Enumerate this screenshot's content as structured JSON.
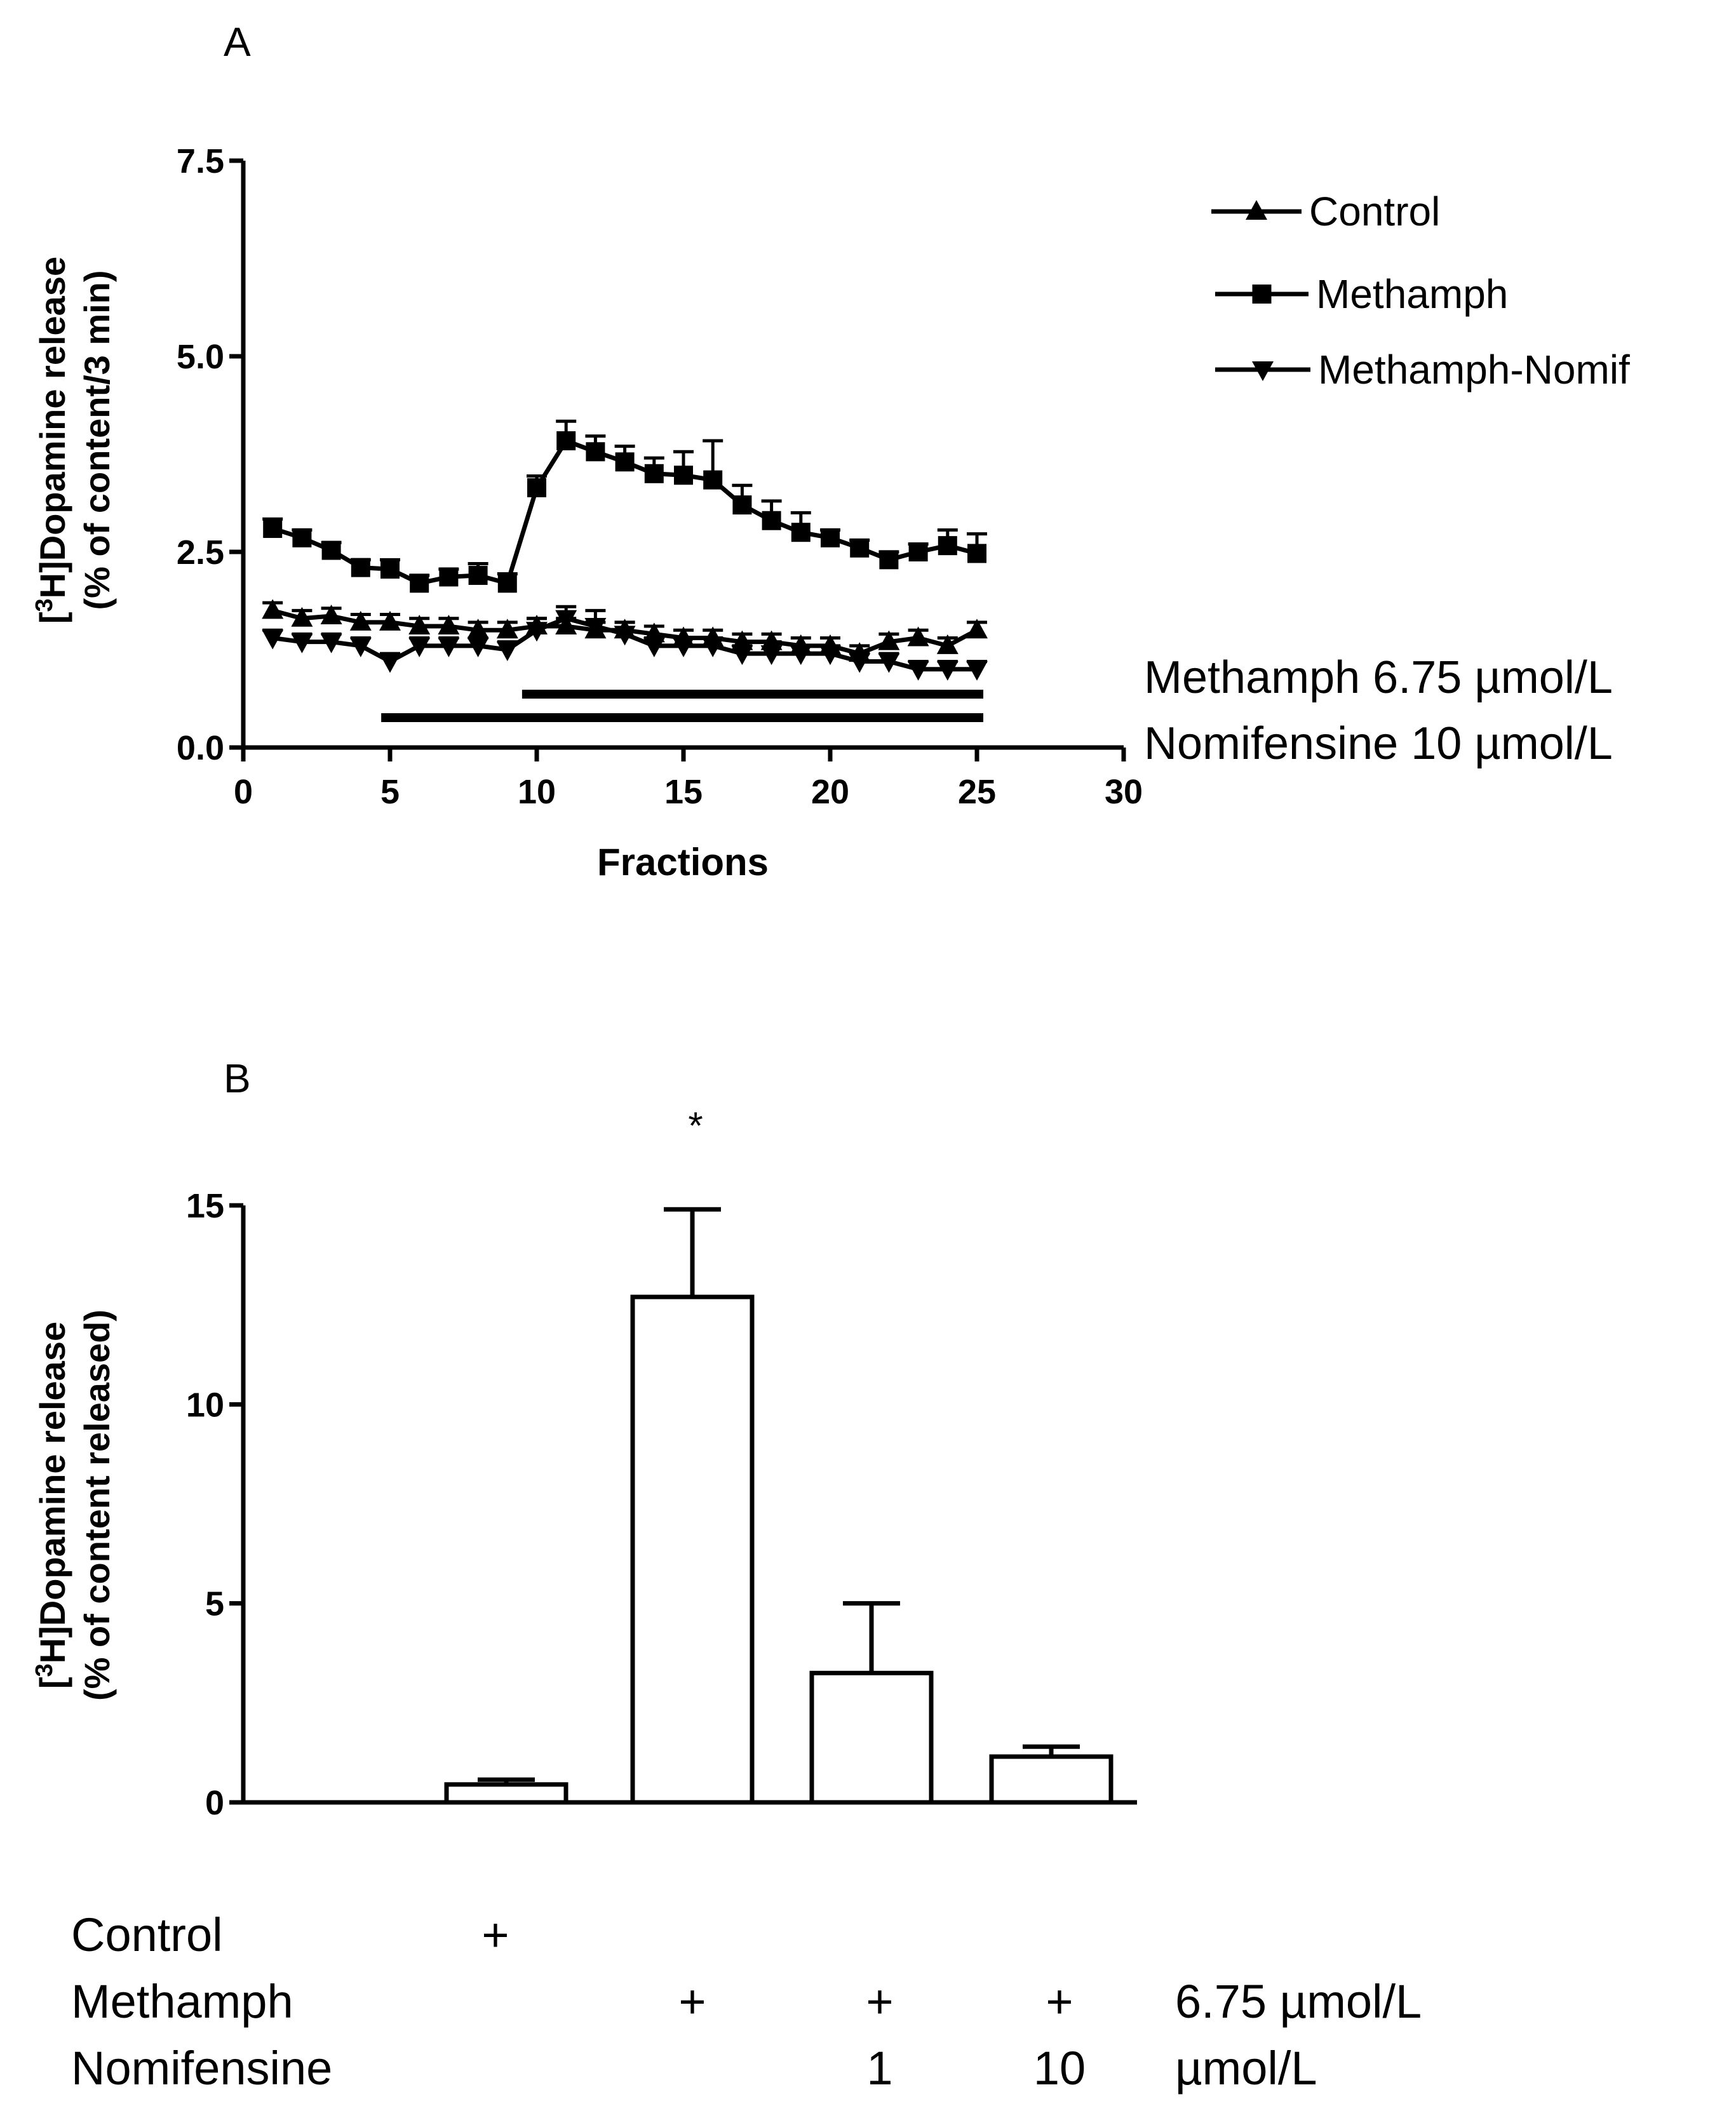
{
  "chart_data": [
    {
      "panel_label": "A",
      "type": "line",
      "xlabel": "Fractions",
      "ylabel": [
        "[3H]Dopamine release",
        "(% of content/3 min)"
      ],
      "xlim": [
        0,
        30
      ],
      "ylim": [
        0,
        7.5
      ],
      "x_ticks": [
        0,
        5,
        10,
        15,
        20,
        25,
        30
      ],
      "y_ticks": [
        0.0,
        2.5,
        5.0,
        7.5
      ],
      "x_tick_labels": [
        "0",
        "5",
        "10",
        "15",
        "20",
        "25",
        "30"
      ],
      "y_tick_labels": [
        "0.0",
        "2.5",
        "5.0",
        "7.5"
      ],
      "x": [
        1,
        2,
        3,
        4,
        5,
        6,
        7,
        8,
        9,
        10,
        11,
        12,
        13,
        14,
        15,
        16,
        17,
        18,
        19,
        20,
        21,
        22,
        23,
        24,
        25
      ],
      "series": [
        {
          "name": "Control",
          "marker": "triangle-up",
          "values": [
            1.75,
            1.65,
            1.68,
            1.6,
            1.6,
            1.55,
            1.55,
            1.5,
            1.5,
            1.55,
            1.55,
            1.5,
            1.5,
            1.45,
            1.4,
            1.4,
            1.35,
            1.35,
            1.3,
            1.3,
            1.2,
            1.35,
            1.4,
            1.3,
            1.5
          ],
          "errors": [
            0.1,
            0.1,
            0.1,
            0.1,
            0.1,
            0.1,
            0.1,
            0.1,
            0.1,
            0.1,
            0.1,
            0.1,
            0.1,
            0.1,
            0.1,
            0.1,
            0.1,
            0.1,
            0.1,
            0.1,
            0.1,
            0.1,
            0.1,
            0.1,
            0.1
          ]
        },
        {
          "name": "Methamph",
          "marker": "square",
          "values": [
            2.8,
            2.68,
            2.52,
            2.3,
            2.28,
            2.1,
            2.18,
            2.2,
            2.1,
            3.32,
            3.92,
            3.78,
            3.65,
            3.5,
            3.48,
            3.42,
            3.1,
            2.9,
            2.75,
            2.68,
            2.55,
            2.4,
            2.5,
            2.58,
            2.48
          ],
          "errors": [
            0.12,
            0.1,
            0.1,
            0.1,
            0.12,
            0.1,
            0.1,
            0.15,
            0.12,
            0.15,
            0.25,
            0.2,
            0.2,
            0.2,
            0.3,
            0.5,
            0.25,
            0.25,
            0.25,
            0.1,
            0.1,
            0.1,
            0.1,
            0.2,
            0.25
          ]
        },
        {
          "name": "Methamph-Nomif",
          "marker": "triangle-down",
          "values": [
            1.4,
            1.35,
            1.35,
            1.3,
            1.1,
            1.3,
            1.3,
            1.3,
            1.25,
            1.5,
            1.65,
            1.55,
            1.45,
            1.3,
            1.3,
            1.3,
            1.2,
            1.2,
            1.2,
            1.2,
            1.1,
            1.1,
            1.0,
            1.0,
            1.0
          ],
          "errors": [
            0.1,
            0.1,
            0.1,
            0.1,
            0.1,
            0.1,
            0.1,
            0.1,
            0.1,
            0.15,
            0.15,
            0.2,
            0.15,
            0.1,
            0.1,
            0.1,
            0.1,
            0.15,
            0.1,
            0.1,
            0.1,
            0.1,
            0.1,
            0.1,
            0.1
          ]
        }
      ],
      "legend": [
        "Control",
        "Methamph",
        "Methamph-Nomif"
      ],
      "legend_position": "top-right",
      "treatment_bars": [
        {
          "label": "Methamph 6.75 µmol/L",
          "x_start": 9.5,
          "x_end": 25
        },
        {
          "label": "Nomifensine 10 µmol/L",
          "x_start": 4.7,
          "x_end": 25
        }
      ]
    },
    {
      "panel_label": "B",
      "type": "bar",
      "ylabel": [
        "[3H]Dopamine release",
        "(% of content released)"
      ],
      "ylim": [
        0,
        15
      ],
      "y_ticks": [
        0,
        5,
        10,
        15
      ],
      "y_tick_labels": [
        "0",
        "5",
        "10",
        "15"
      ],
      "categories": [
        "Control",
        "Methamph",
        "Methamph + Nomifensine 1",
        "Methamph + Nomifensine 10"
      ],
      "values": [
        0.45,
        12.7,
        3.25,
        1.15
      ],
      "errors": [
        0.12,
        2.2,
        1.75,
        0.25
      ],
      "annotations": [
        "",
        "*",
        "",
        ""
      ],
      "conditions": [
        {
          "label": "Control",
          "cells": [
            "+",
            "",
            "",
            ""
          ],
          "unit": ""
        },
        {
          "label": "Methamph",
          "cells": [
            "",
            "+",
            "+",
            "+"
          ],
          "unit": "6.75 µmol/L"
        },
        {
          "label": "Nomifensine",
          "cells": [
            "",
            "",
            "1",
            "10"
          ],
          "unit": "µmol/L"
        }
      ]
    }
  ]
}
